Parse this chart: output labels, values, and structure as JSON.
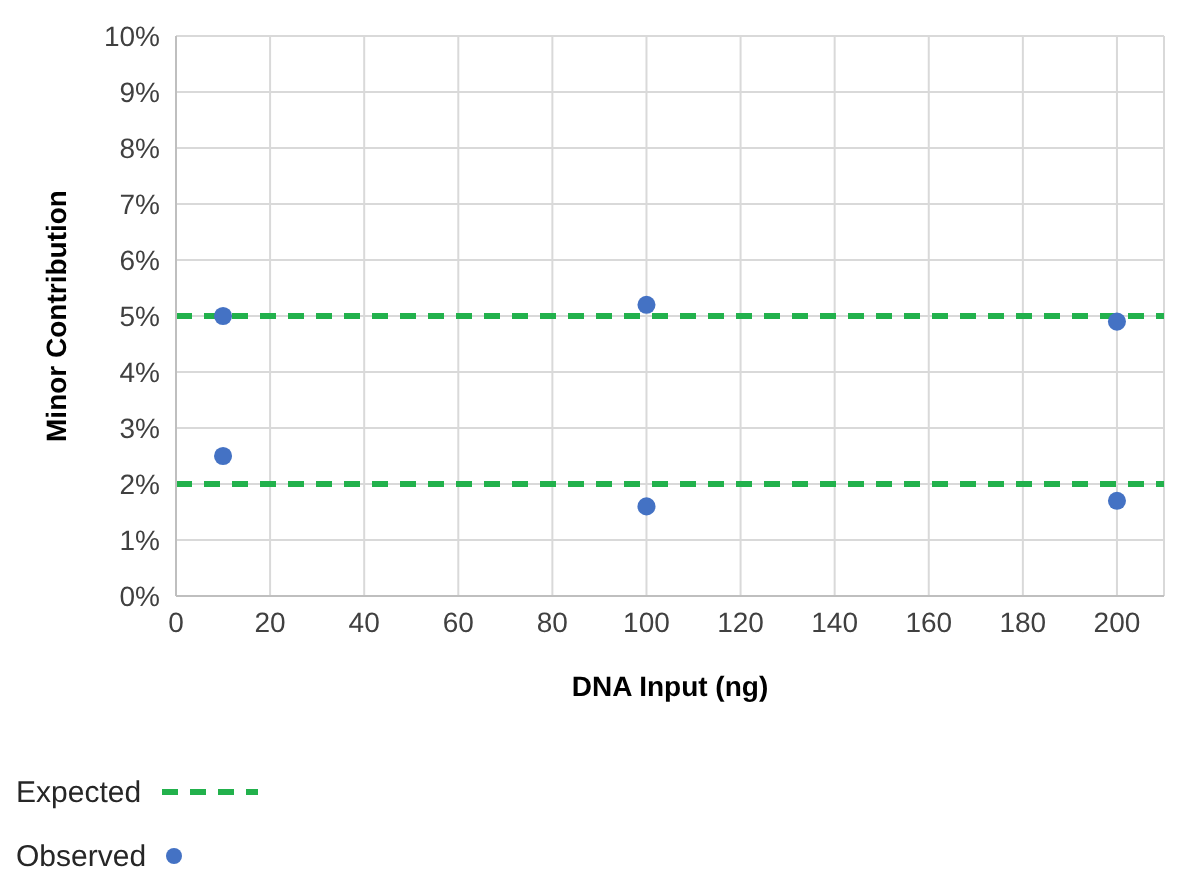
{
  "chart_data": {
    "type": "scatter",
    "xlabel": "DNA Input (ng)",
    "ylabel": "Minor Contribution",
    "series": [
      {
        "name": "Expected",
        "type": "line",
        "color": "#22b14c",
        "line_style": "dashed",
        "marker": "none",
        "x": [
          0,
          210
        ],
        "values": [
          5,
          5
        ]
      },
      {
        "type": "line",
        "color": "#22b14c",
        "line_style": "dashed",
        "marker": "none",
        "x": [
          0,
          210
        ],
        "values": [
          2,
          2
        ]
      },
      {
        "name": "Observed",
        "color": "#4472c4",
        "marker": "circle",
        "x": [
          10,
          10,
          100,
          100,
          200,
          200
        ],
        "values": [
          5.0,
          2.5,
          5.2,
          1.6,
          4.9,
          1.7
        ]
      }
    ],
    "xlim": [
      0,
      210
    ],
    "xticks": [
      0,
      20,
      40,
      60,
      80,
      100,
      120,
      140,
      160,
      180,
      200
    ],
    "ylim": [
      0,
      10
    ],
    "yticks": [
      {
        "value": 0,
        "label": "0%"
      },
      {
        "value": 1,
        "label": "1%"
      },
      {
        "value": 2,
        "label": "2%"
      },
      {
        "value": 3,
        "label": "3%"
      },
      {
        "value": 4,
        "label": "4%"
      },
      {
        "value": 5,
        "label": "5%"
      },
      {
        "value": 6,
        "label": "6%"
      },
      {
        "value": 7,
        "label": "7%"
      },
      {
        "value": 8,
        "label": "8%"
      },
      {
        "value": 9,
        "label": "9%"
      },
      {
        "value": 10,
        "label": "10%"
      }
    ],
    "grid": true,
    "legend": "bottom left"
  }
}
